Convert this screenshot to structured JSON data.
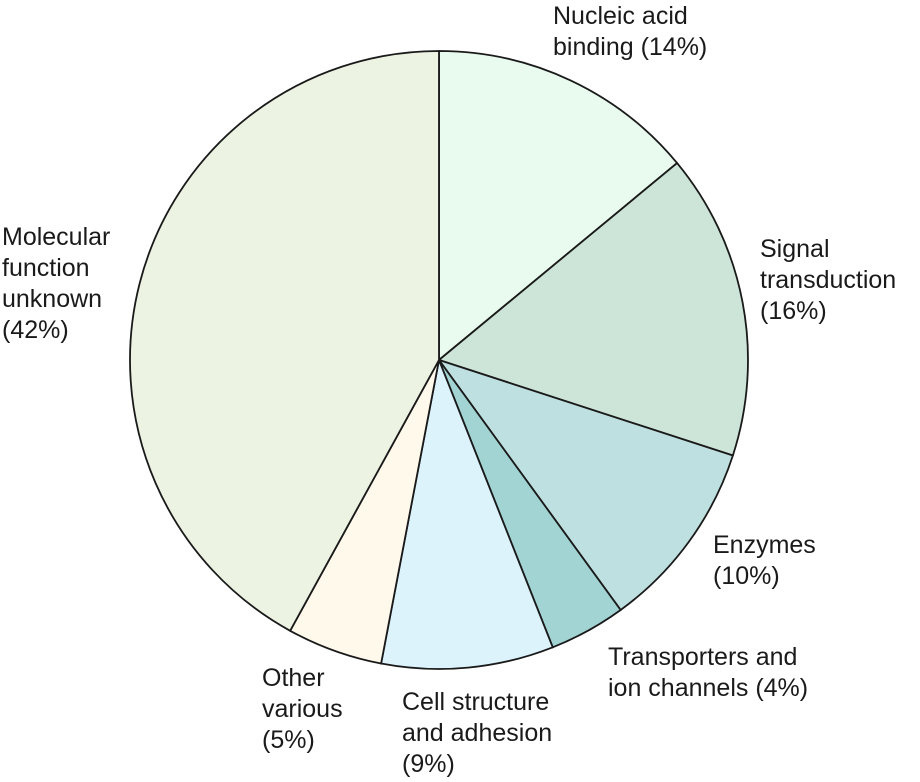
{
  "chart_data": {
    "type": "pie",
    "title": "",
    "slices": [
      {
        "name": "Nucleic acid binding",
        "value": 14,
        "label_lines": [
          "Nucleic acid",
          "binding (14%)"
        ],
        "color": "#e8fbee"
      },
      {
        "name": "Signal transduction",
        "value": 16,
        "label_lines": [
          "Signal",
          "transduction",
          "(16%)"
        ],
        "color": "#cde5d8"
      },
      {
        "name": "Enzymes",
        "value": 10,
        "label_lines": [
          "Enzymes",
          "(10%)"
        ],
        "color": "#bfe0e0"
      },
      {
        "name": "Transporters and ion channels",
        "value": 4,
        "label_lines": [
          "Transporters and",
          "ion channels (4%)"
        ],
        "color": "#a2d4d4"
      },
      {
        "name": "Cell structure and adhesion",
        "value": 9,
        "label_lines": [
          "Cell structure",
          "and adhesion",
          "(9%)"
        ],
        "color": "#dcf3fc"
      },
      {
        "name": "Other various",
        "value": 5,
        "label_lines": [
          "Other",
          "various",
          "(5%)"
        ],
        "color": "#fff9ec"
      },
      {
        "name": "Molecular function unknown",
        "value": 42,
        "label_lines": [
          "Molecular",
          "function",
          "unknown",
          "(42%)"
        ],
        "color": "#ecf3e2"
      }
    ]
  }
}
